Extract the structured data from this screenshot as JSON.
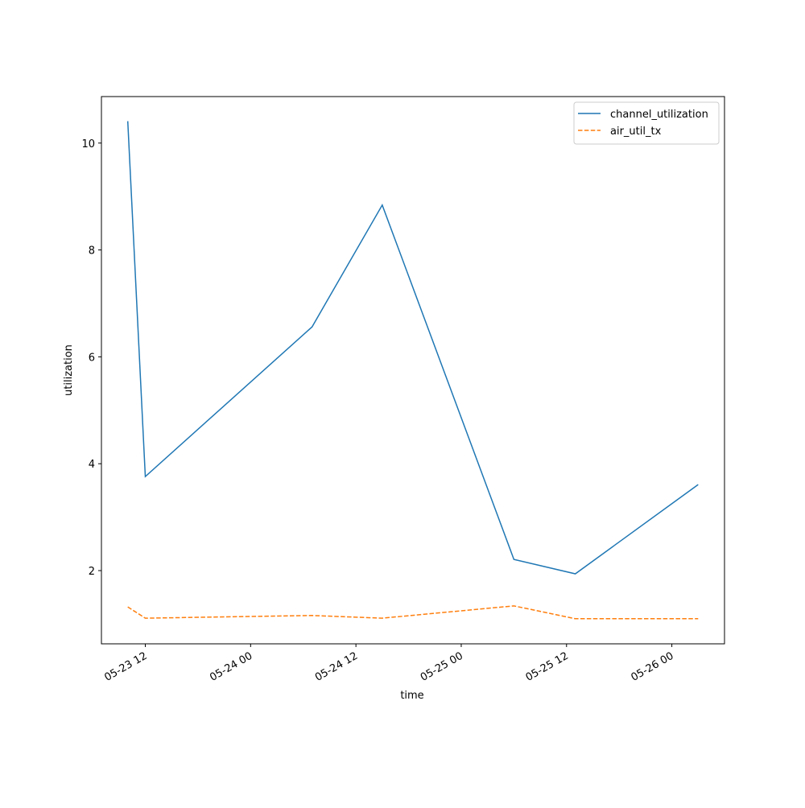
{
  "chart_data": {
    "type": "line",
    "x": [
      "05-23 10",
      "05-23 12",
      "05-24 07",
      "05-24 15",
      "05-25 06",
      "05-25 13",
      "05-26 03"
    ],
    "series": [
      {
        "name": "channel_utilization",
        "color": "#1f77b4",
        "dash": "solid",
        "values": [
          10.41,
          3.76,
          6.56,
          8.84,
          2.21,
          1.94,
          3.61
        ]
      },
      {
        "name": "air_util_tx",
        "color": "#ff7f0e",
        "dash": "dashed",
        "values": [
          1.32,
          1.11,
          1.16,
          1.11,
          1.34,
          1.1,
          1.1
        ]
      }
    ],
    "xlabel": "time",
    "ylabel": "utilization",
    "xlim": [
      "05-23 07",
      "05-26 06"
    ],
    "xticks": [
      "05-23 12",
      "05-24 00",
      "05-24 12",
      "05-25 00",
      "05-25 12",
      "05-26 00"
    ],
    "ylim": [
      0.63,
      10.87
    ],
    "yticks": [
      2,
      4,
      6,
      8,
      10
    ],
    "grid": false,
    "legend": "upper right"
  }
}
